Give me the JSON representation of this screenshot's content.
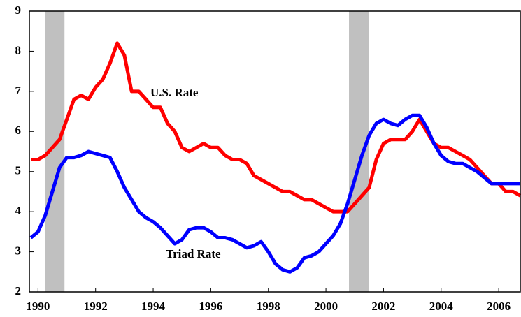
{
  "chart_data": {
    "type": "line",
    "annotations": [
      "U.S. Rate",
      "Triad Rate"
    ],
    "xlim": [
      1989.7,
      2006.75
    ],
    "xticks": [
      1990,
      1992,
      1994,
      1996,
      1998,
      2000,
      2002,
      2004,
      2006
    ],
    "ylim": [
      2,
      9
    ],
    "yticks": [
      2,
      3,
      4,
      5,
      6,
      7,
      8,
      9
    ],
    "grid": false,
    "shaded_regions": [
      [
        1990.25,
        1990.92
      ],
      [
        2000.8,
        2001.5
      ]
    ],
    "shade_color": "#c0c0c0",
    "x": [
      1989.75,
      1990,
      1990.25,
      1990.5,
      1990.75,
      1991,
      1991.25,
      1991.5,
      1991.75,
      1992,
      1992.25,
      1992.5,
      1992.75,
      1993,
      1993.25,
      1993.5,
      1993.75,
      1994,
      1994.25,
      1994.5,
      1994.75,
      1995,
      1995.25,
      1995.5,
      1995.75,
      1996,
      1996.25,
      1996.5,
      1996.75,
      1997,
      1997.25,
      1997.5,
      1997.75,
      1998,
      1998.25,
      1998.5,
      1998.75,
      1999,
      1999.25,
      1999.5,
      1999.75,
      2000,
      2000.25,
      2000.5,
      2000.75,
      2001,
      2001.25,
      2001.5,
      2001.75,
      2002,
      2002.25,
      2002.5,
      2002.75,
      2003,
      2003.25,
      2003.5,
      2003.75,
      2004,
      2004.25,
      2004.5,
      2004.75,
      2005,
      2005.25,
      2005.5,
      2005.75,
      2006,
      2006.25,
      2006.5,
      2006.75
    ],
    "series": [
      {
        "name": "U.S. Rate",
        "color": "#ff0000",
        "values": [
          5.3,
          5.3,
          5.4,
          5.6,
          5.8,
          6.3,
          6.8,
          6.9,
          6.8,
          7.1,
          7.3,
          7.7,
          8.2,
          7.9,
          7.0,
          7.0,
          6.8,
          6.6,
          6.6,
          6.2,
          6.0,
          5.6,
          5.5,
          5.6,
          5.7,
          5.6,
          5.6,
          5.4,
          5.3,
          5.3,
          5.2,
          4.9,
          4.8,
          4.7,
          4.6,
          4.5,
          4.5,
          4.4,
          4.3,
          4.3,
          4.2,
          4.1,
          4.0,
          4.0,
          4.0,
          4.2,
          4.4,
          4.6,
          5.3,
          5.7,
          5.8,
          5.8,
          5.8,
          6.0,
          6.3,
          6.0,
          5.7,
          5.6,
          5.6,
          5.5,
          5.4,
          5.3,
          5.1,
          4.9,
          4.7,
          4.7,
          4.5,
          4.5,
          4.4
        ]
      },
      {
        "name": "Triad Rate",
        "color": "#0000ff",
        "values": [
          3.35,
          3.5,
          3.9,
          4.5,
          5.1,
          5.35,
          5.35,
          5.4,
          5.5,
          5.45,
          5.4,
          5.35,
          5.0,
          4.6,
          4.3,
          4.0,
          3.85,
          3.75,
          3.6,
          3.4,
          3.2,
          3.3,
          3.55,
          3.6,
          3.6,
          3.5,
          3.35,
          3.35,
          3.3,
          3.2,
          3.1,
          3.15,
          3.25,
          3.0,
          2.7,
          2.55,
          2.5,
          2.6,
          2.85,
          2.9,
          3.0,
          3.2,
          3.4,
          3.7,
          4.2,
          4.8,
          5.4,
          5.9,
          6.2,
          6.3,
          6.2,
          6.15,
          6.3,
          6.4,
          6.4,
          6.1,
          5.7,
          5.4,
          5.25,
          5.2,
          5.2,
          5.1,
          5.0,
          4.85,
          4.7,
          4.7,
          4.7,
          4.7,
          4.7
        ]
      }
    ]
  }
}
